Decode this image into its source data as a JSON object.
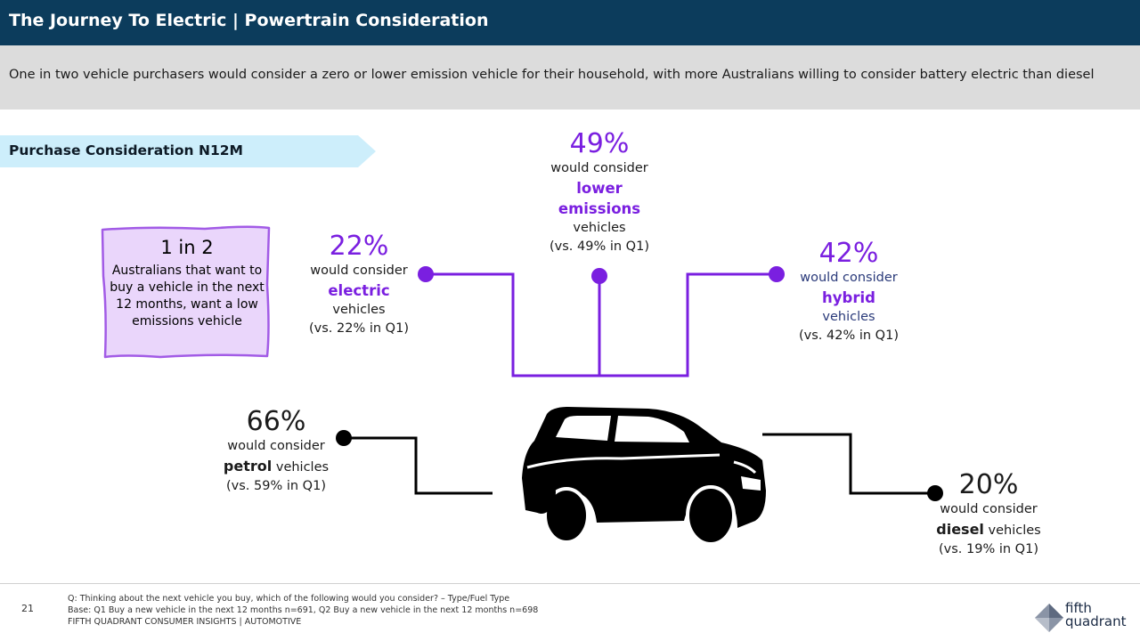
{
  "header": {
    "title": "The Journey To Electric | Powertrain Consideration"
  },
  "subtitle": "One in two vehicle purchasers would consider a zero or lower emission vehicle for their household, with more Australians willing to consider battery electric than diesel",
  "section_label": "Purchase Consideration N12M",
  "callout": {
    "headline": "1 in 2",
    "body": "Australians that want to buy a vehicle in the next 12 months, want a low emissions vehicle"
  },
  "stats": {
    "lower_emissions": {
      "pct": "49%",
      "l1": "would consider",
      "k1": "lower",
      "k2": "emissions",
      "l2": "vehicles",
      "l3": "(vs. 49% in Q1)"
    },
    "electric": {
      "pct": "22%",
      "l1": "would consider",
      "k1": "electric",
      "l2": "vehicles",
      "l3": "(vs. 22% in Q1)"
    },
    "hybrid": {
      "pct": "42%",
      "l1": "would consider",
      "k1": "hybrid",
      "l2": "vehicles",
      "l3": "(vs. 42% in Q1)"
    },
    "petrol": {
      "pct": "66%",
      "l1": "would consider",
      "k1": "petrol",
      "k1_suffix": " vehicles",
      "l3": "(vs. 59% in Q1)"
    },
    "diesel": {
      "pct": "20%",
      "l1": "would consider",
      "k1": "diesel",
      "k1_suffix": " vehicles",
      "l3": "(vs. 19% in Q1)"
    }
  },
  "footer": {
    "page_number": "21",
    "question": "Q: Thinking about the next vehicle you buy, which of the following would you consider? – Type/Fuel Type",
    "base": "Base: Q1 Buy a new vehicle in the next 12 months n=691, Q2 Buy a new vehicle in the next 12 months n=698",
    "source": "FIFTH QUADRANT CONSUMER INSIGHTS | AUTOMOTIVE"
  },
  "logo": {
    "line1": "fifth",
    "line2": "quadrant"
  },
  "colors": {
    "header": "#0c3c5c",
    "accent_purple": "#7a1fe0",
    "label_band": "#cdeefb",
    "callout_fill": "#ead6fb"
  }
}
